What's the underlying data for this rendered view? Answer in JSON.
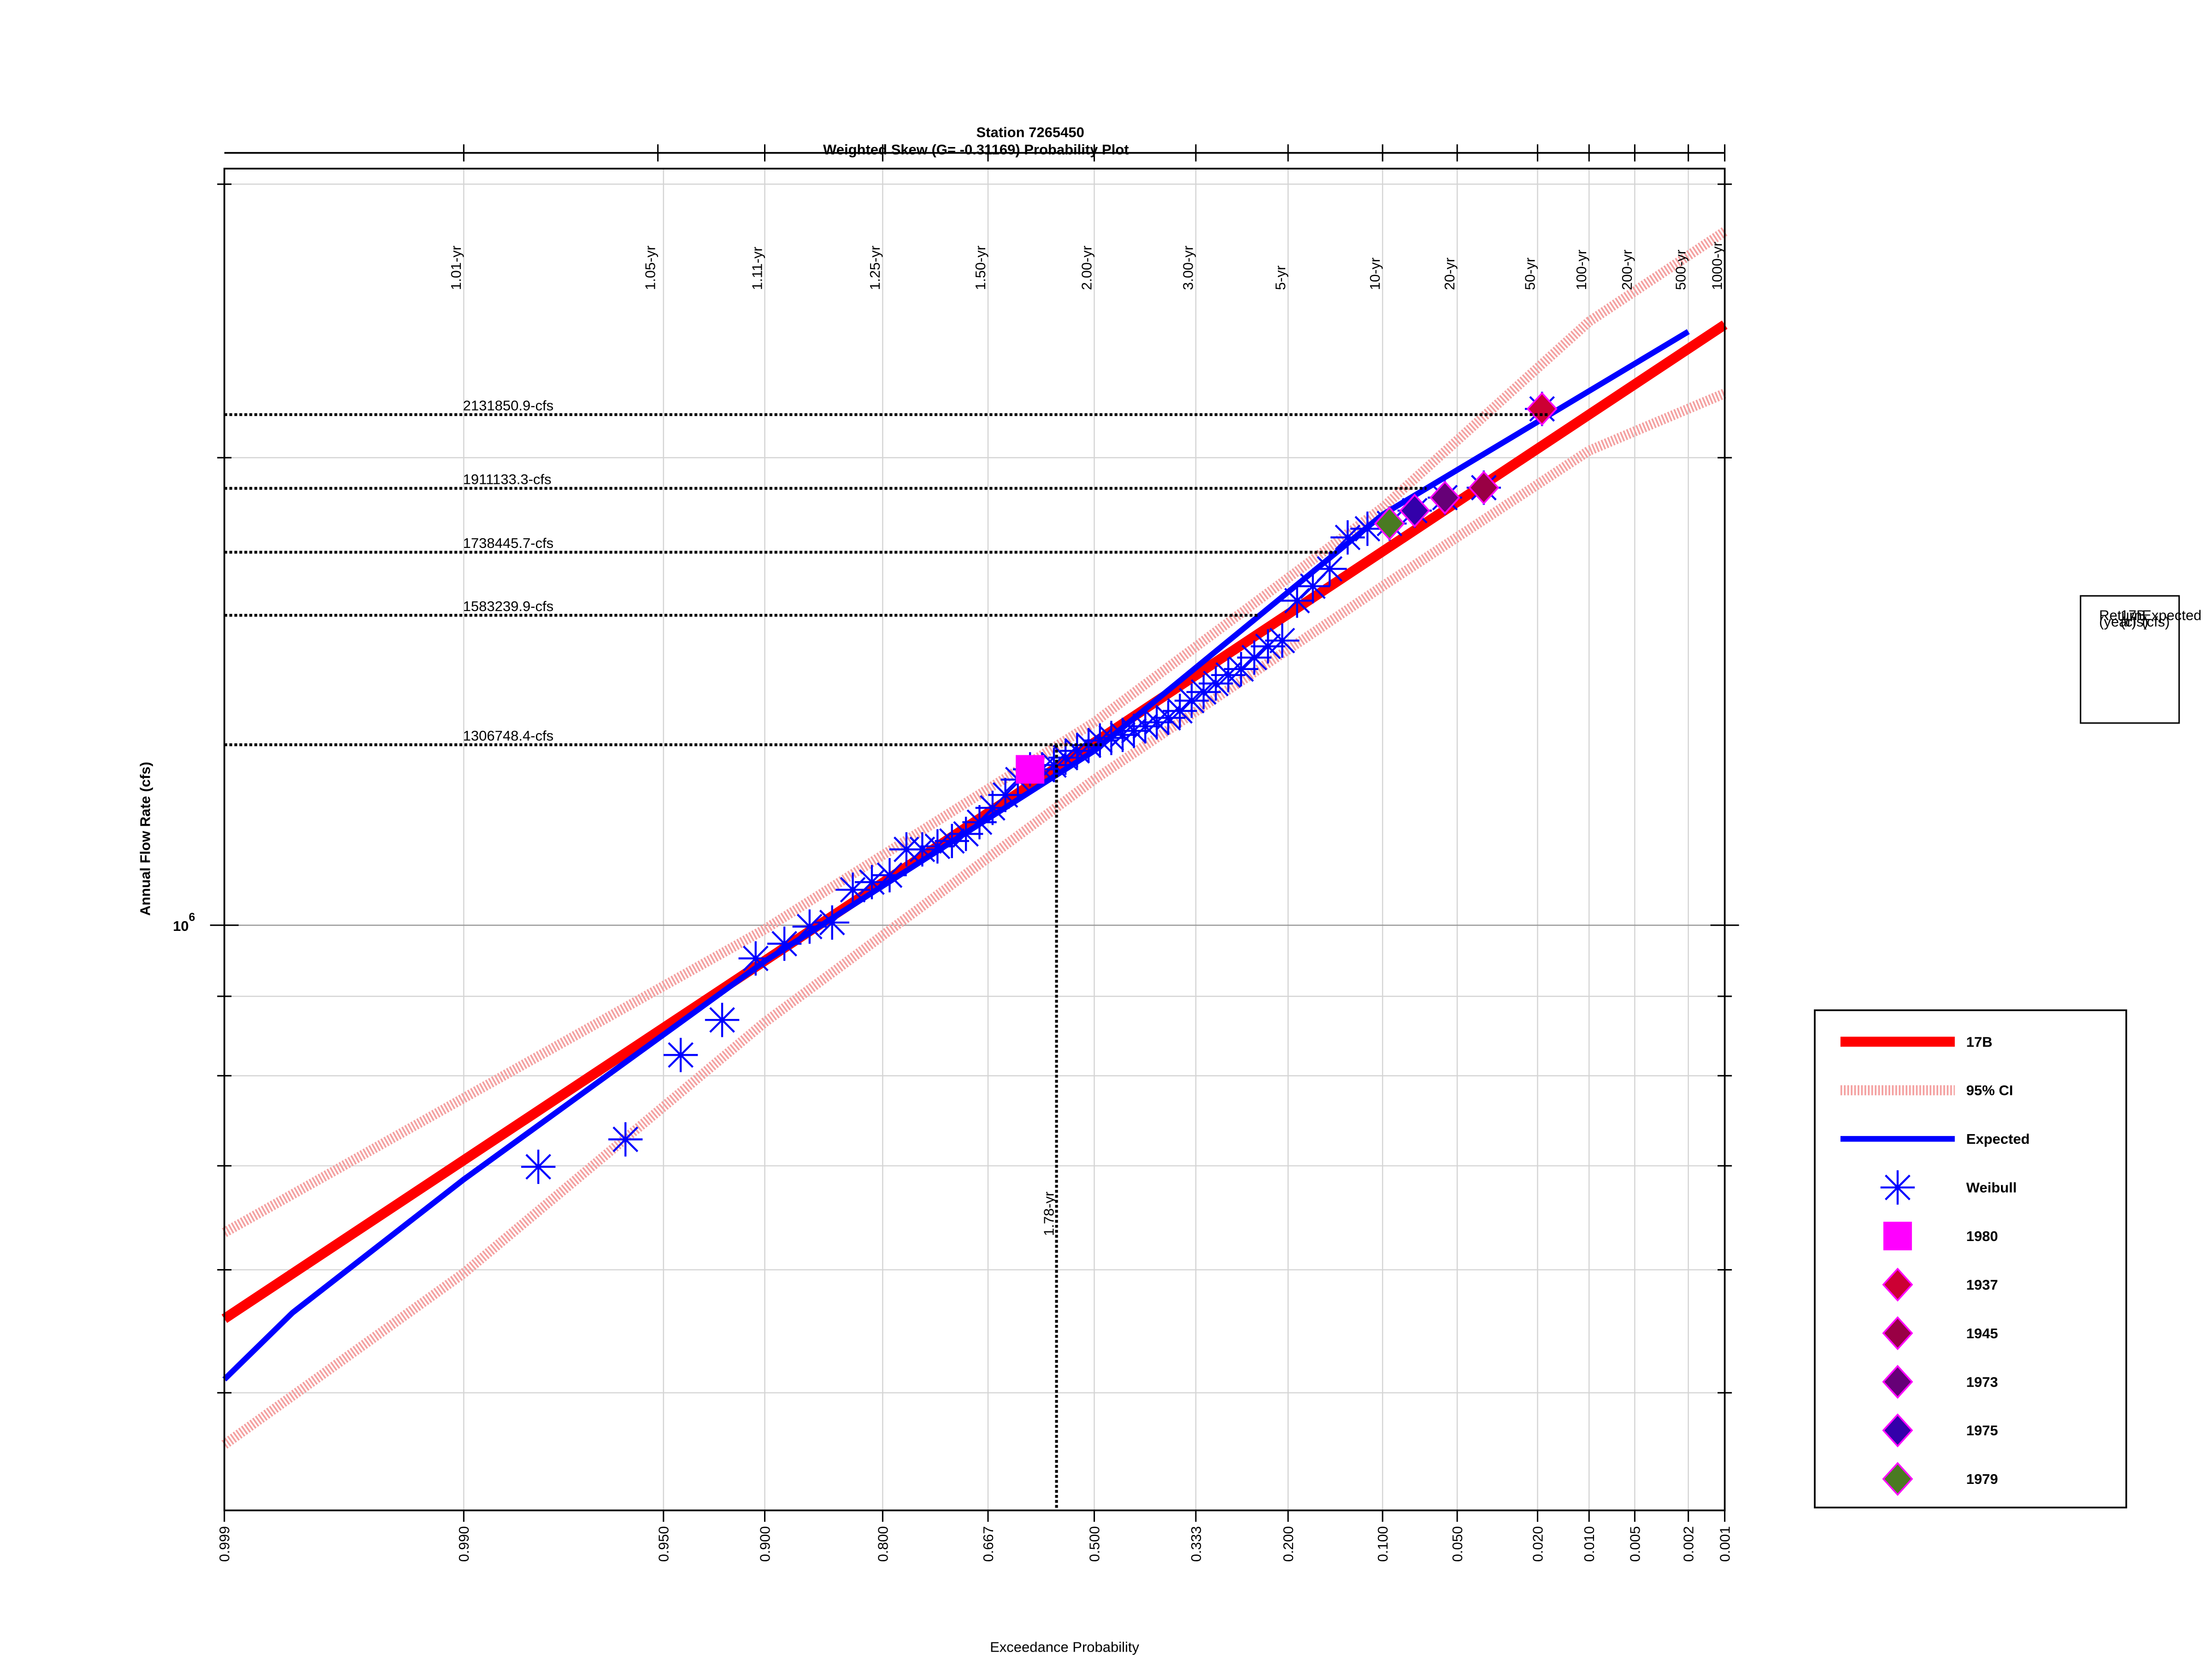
{
  "chart_data": {
    "type": "probability",
    "title": "Station 7265450",
    "subtitle": "Weighted Skew (G= -0.31169) Probability Plot",
    "x_label": "Exceedance Probability",
    "y_label": "Annual Flow Rate (cfs)",
    "x_scale": "pearson3",
    "skew": -0.31169,
    "y_scale": "log",
    "grid": true,
    "legend": "right",
    "xlim": [
      0.999,
      0.001
    ],
    "ylim": [
      420000,
      3070000
    ],
    "xticks": [
      {
        "value": 0.999,
        "label": "0.999"
      },
      {
        "value": 0.99,
        "label": "0.990"
      },
      {
        "value": 0.95,
        "label": "0.950"
      },
      {
        "value": 0.9,
        "label": "0.900"
      },
      {
        "value": 0.8,
        "label": "0.800"
      },
      {
        "value": 0.667,
        "label": "0.667"
      },
      {
        "value": 0.5,
        "label": "0.500"
      },
      {
        "value": 0.333,
        "label": "0.333"
      },
      {
        "value": 0.2,
        "label": "0.200"
      },
      {
        "value": 0.1,
        "label": "0.100"
      },
      {
        "value": 0.05,
        "label": "0.050"
      },
      {
        "value": 0.02,
        "label": "0.020"
      },
      {
        "value": 0.01,
        "label": "0.010"
      },
      {
        "value": 0.005,
        "label": "0.005"
      },
      {
        "value": 0.002,
        "label": "0.002"
      },
      {
        "value": 0.001,
        "label": "0.001"
      }
    ],
    "x2ticks": [
      {
        "value": 0.99,
        "label": "1.01-yr"
      },
      {
        "value": 0.952,
        "label": "1.05-yr"
      },
      {
        "value": 0.9,
        "label": "1.11-yr"
      },
      {
        "value": 0.8,
        "label": "1.25-yr"
      },
      {
        "value": 0.667,
        "label": "1.50-yr"
      },
      {
        "value": 0.5,
        "label": "2.00-yr"
      },
      {
        "value": 0.333,
        "label": "3.00-yr"
      },
      {
        "value": 0.2,
        "label": "5-yr"
      },
      {
        "value": 0.1,
        "label": "10-yr"
      },
      {
        "value": 0.05,
        "label": "20-yr"
      },
      {
        "value": 0.02,
        "label": "50-yr"
      },
      {
        "value": 0.01,
        "label": "100-yr"
      },
      {
        "value": 0.005,
        "label": "200-yr"
      },
      {
        "value": 0.002,
        "label": "500-yr"
      },
      {
        "value": 0.001,
        "label": "1000-yr"
      }
    ],
    "yticks": [
      {
        "value": 500000,
        "label": null
      },
      {
        "value": 600000,
        "label": null
      },
      {
        "value": 700000,
        "label": null
      },
      {
        "value": 800000,
        "label": null
      },
      {
        "value": 900000,
        "label": null
      },
      {
        "value": 1000000,
        "label": "10",
        "exponent": "6"
      },
      {
        "value": 2000000,
        "label": null
      },
      {
        "value": 3000000,
        "label": null
      }
    ],
    "series": [
      {
        "name": "17B",
        "kind": "line",
        "color": "#ff0000",
        "width": 7,
        "x": [
          0.999,
          0.5,
          0.001
        ],
        "values": [
          558000,
          1311000,
          2436000
        ]
      },
      {
        "name": "95% CI",
        "kind": "band",
        "color": "#f4a0a0",
        "width": 7,
        "x": [
          0.999,
          0.99,
          0.9,
          0.5,
          0.1,
          0.01,
          0.001
        ],
        "values": [
          634000,
          774000,
          994000,
          1351000,
          1857000,
          2447000,
          2797000
        ],
        "lower": [
          463000,
          597000,
          866000,
          1241000,
          1653000,
          2021000,
          2200000
        ]
      },
      {
        "name": "Expected",
        "kind": "line",
        "color": "#0000ff",
        "width": 4,
        "x": [
          0.999,
          0.998,
          0.99,
          0.9,
          0.5,
          0.1,
          0.002
        ],
        "values": [
          510000,
          563000,
          686000,
          948000,
          1295000,
          1838000,
          2411000
        ]
      },
      {
        "name": "Weibull",
        "kind": "scatter",
        "marker": "star",
        "color": "#0000ff",
        "x": [
          0.0189,
          0.0377,
          0.0566,
          0.0755,
          0.0943,
          0.1132,
          0.1321,
          0.1509,
          0.1698,
          0.1887,
          0.2075,
          0.2264,
          0.2453,
          0.2642,
          0.283,
          0.3019,
          0.3208,
          0.3396,
          0.3585,
          0.3774,
          0.3962,
          0.4151,
          0.434,
          0.4528,
          0.4717,
          0.4906,
          0.5094,
          0.5283,
          0.5472,
          0.566,
          0.5849,
          0.6038,
          0.6226,
          0.6415,
          0.6604,
          0.6792,
          0.6981,
          0.717,
          0.7358,
          0.7547,
          0.7736,
          0.7925,
          0.8113,
          0.8302,
          0.8491,
          0.8679,
          0.8868,
          0.9057,
          0.9245,
          0.9434,
          0.9623,
          0.9811
        ],
        "values": [
          2150000,
          1913000,
          1885000,
          1849000,
          1814000,
          1800000,
          1777000,
          1696000,
          1653000,
          1618000,
          1525000,
          1512000,
          1487000,
          1462000,
          1449000,
          1431000,
          1413000,
          1395000,
          1374000,
          1360000,
          1351000,
          1343000,
          1334000,
          1326000,
          1320000,
          1315000,
          1306000,
          1295000,
          1282000,
          1268000,
          1260000,
          1260000,
          1241000,
          1213000,
          1190000,
          1165000,
          1145000,
          1133000,
          1124000,
          1119000,
          1119000,
          1077000,
          1066000,
          1054000,
          1004000,
          998000,
          973000,
          952000,
          869000,
          825000,
          728000,
          699000
        ]
      },
      {
        "name": "1980",
        "kind": "scatter",
        "marker": "square",
        "color": "#ff00ff",
        "x": [
          0.6038
        ],
        "values": [
          1260000
        ]
      },
      {
        "name": "1937",
        "kind": "scatter",
        "marker": "diamond",
        "color": "#cc0033",
        "edge": "#ff00ff",
        "x": [
          0.0189
        ],
        "values": [
          2150000
        ]
      },
      {
        "name": "1945",
        "kind": "scatter",
        "marker": "diamond",
        "color": "#990044",
        "edge": "#ff00ff",
        "x": [
          0.0377
        ],
        "values": [
          1913000
        ]
      },
      {
        "name": "1973",
        "kind": "scatter",
        "marker": "diamond",
        "color": "#660077",
        "edge": "#ff00ff",
        "x": [
          0.0566
        ],
        "values": [
          1885000
        ]
      },
      {
        "name": "1975",
        "kind": "scatter",
        "marker": "diamond",
        "color": "#3300aa",
        "edge": "#ff00ff",
        "x": [
          0.0755
        ],
        "values": [
          1849000
        ]
      },
      {
        "name": "1979",
        "kind": "scatter",
        "marker": "diamond",
        "color": "#4a7a22",
        "edge": "#ff00ff",
        "x": [
          0.0943
        ],
        "values": [
          1814000
        ]
      }
    ],
    "hlines": [
      {
        "value": 2131850.9,
        "label": "2131850.9-cfs"
      },
      {
        "value": 1911133.3,
        "label": "1911133.3-cfs"
      },
      {
        "value": 1738445.7,
        "label": "1738445.7-cfs"
      },
      {
        "value": 1583239.9,
        "label": "1583239.9-cfs"
      },
      {
        "value": 1306748.4,
        "label": "1306748.4-cfs"
      }
    ],
    "vline": {
      "x": 0.5618,
      "label": "1.78-yr"
    },
    "table": {
      "header": [
        "Return",
        "17B",
        "Expected",
        "(year)",
        "(cfs)",
        "(cfs)"
      ]
    }
  }
}
